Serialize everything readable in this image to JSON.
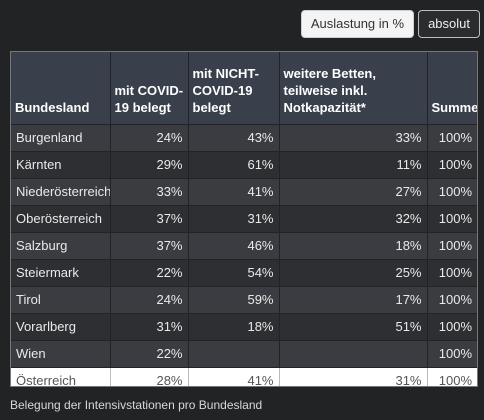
{
  "toolbar": {
    "percent_label": "Auslastung in %",
    "absolute_label": "absolut"
  },
  "table": {
    "headers": [
      "Bundesland",
      "mit COVID-19 belegt",
      "mit NICHT-COVID-19 belegt",
      "weitere Betten, teilweise inkl. Notkapazität*",
      "Summe"
    ],
    "rows": [
      [
        "Burgenland",
        "24%",
        "43%",
        "33%",
        "100%"
      ],
      [
        "Kärnten",
        "29%",
        "61%",
        "11%",
        "100%"
      ],
      [
        "Niederösterreich",
        "33%",
        "41%",
        "27%",
        "100%"
      ],
      [
        "Oberösterreich",
        "37%",
        "31%",
        "32%",
        "100%"
      ],
      [
        "Salzburg",
        "37%",
        "46%",
        "18%",
        "100%"
      ],
      [
        "Steiermark",
        "22%",
        "54%",
        "25%",
        "100%"
      ],
      [
        "Tirol",
        "24%",
        "59%",
        "17%",
        "100%"
      ],
      [
        "Vorarlberg",
        "31%",
        "18%",
        "51%",
        "100%"
      ],
      [
        "Wien",
        "22%",
        "",
        "",
        "100%"
      ]
    ],
    "total": [
      "Österreich",
      "28%",
      "41%",
      "31%",
      "100%"
    ]
  },
  "caption": "Belegung der Intensivstationen pro Bundesland"
}
